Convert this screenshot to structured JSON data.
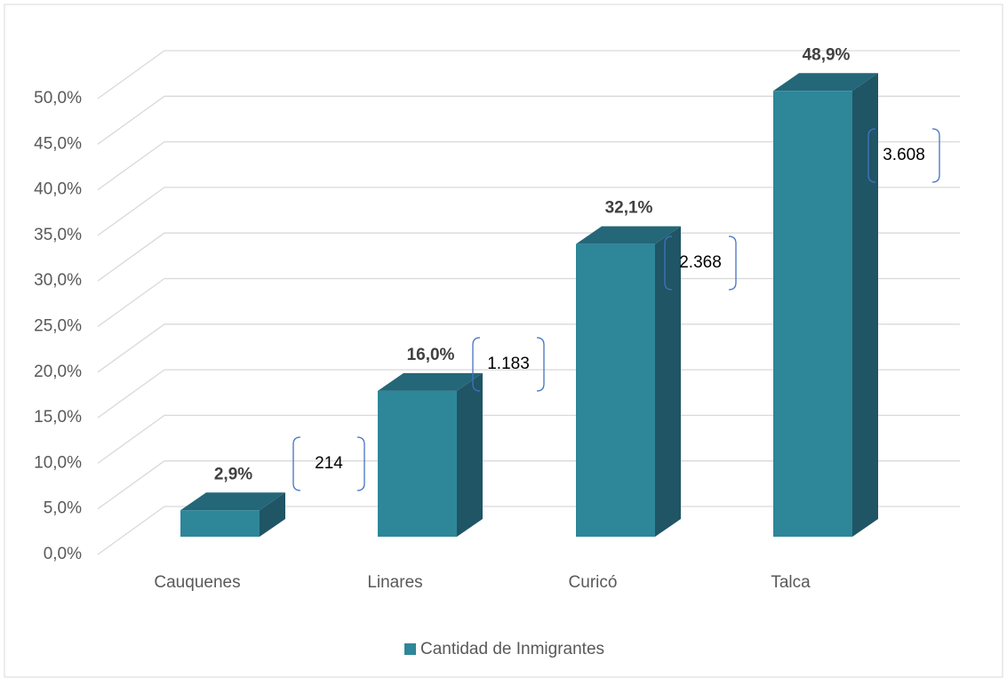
{
  "chart_data": {
    "type": "bar3d",
    "categories": [
      "Cauquenes",
      "Linares",
      "Curicó",
      "Talca"
    ],
    "values": [
      2.9,
      16.0,
      32.1,
      48.9
    ],
    "value_labels": [
      "2,9%",
      "16,0%",
      "32,1%",
      "48,9%"
    ],
    "annotations": [
      "214",
      "1.183",
      "2.368",
      "3.608"
    ],
    "series_name": "Cantidad de Inmigrantes",
    "color": "#2e8699",
    "ylim": [
      0,
      50
    ],
    "yticks": [
      {
        "value": 0,
        "label": "0,0%"
      },
      {
        "value": 5,
        "label": "5,0%"
      },
      {
        "value": 10,
        "label": "10,0%"
      },
      {
        "value": 15,
        "label": "15,0%"
      },
      {
        "value": 20,
        "label": "20,0%"
      },
      {
        "value": 25,
        "label": "25,0%"
      },
      {
        "value": 30,
        "label": "30,0%"
      },
      {
        "value": 35,
        "label": "35,0%"
      },
      {
        "value": 40,
        "label": "40,0%"
      },
      {
        "value": 45,
        "label": "45,0%"
      },
      {
        "value": 50,
        "label": "50,0%"
      }
    ],
    "grid": true
  }
}
